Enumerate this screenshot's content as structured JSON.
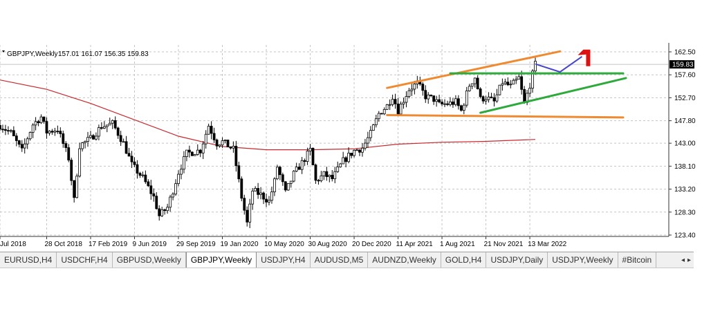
{
  "header": {
    "symbol": "GBPJPY,Weekly",
    "ohlc": "157.01 161.07 156.35 159.83"
  },
  "chart_data": {
    "type": "candlestick",
    "symbol": "GBPJPY",
    "timeframe": "Weekly",
    "ylim": [
      123.4,
      162.5
    ],
    "y_ticks": [
      "162.50",
      "157.60",
      "152.70",
      "147.80",
      "143.00",
      "138.10",
      "133.20",
      "128.30",
      "123.40"
    ],
    "current_price": "159.83",
    "x_ticks": [
      "Jul 2018",
      "28 Oct 2018",
      "17 Feb 2019",
      "9 Jun 2019",
      "29 Sep 2019",
      "19 Jan 2020",
      "10 May 2020",
      "30 Aug 2020",
      "20 Dec 2020",
      "11 Apr 2021",
      "1 Aug 2021",
      "21 Nov 2021",
      "13 Mar 2022"
    ],
    "x_range": [
      "2018-07-01",
      "2022-11-13"
    ],
    "grid": true,
    "close_path": [
      [
        "2018-07-01",
        146.8
      ],
      [
        "2018-07-29",
        145.2
      ],
      [
        "2018-08-26",
        141.3
      ],
      [
        "2018-09-23",
        147.0
      ],
      [
        "2018-10-14",
        148.6
      ],
      [
        "2018-10-28",
        145.4
      ],
      [
        "2018-11-25",
        146.0
      ],
      [
        "2018-12-23",
        139.8
      ],
      [
        "2019-01-06",
        130.8
      ],
      [
        "2019-01-20",
        142.5
      ],
      [
        "2019-02-17",
        144.0
      ],
      [
        "2019-03-17",
        146.6
      ],
      [
        "2019-04-14",
        147.2
      ],
      [
        "2019-05-12",
        143.0
      ],
      [
        "2019-06-02",
        138.4
      ],
      [
        "2019-06-30",
        135.6
      ],
      [
        "2019-07-28",
        131.5
      ],
      [
        "2019-08-11",
        127.5
      ],
      [
        "2019-09-01",
        129.3
      ],
      [
        "2019-09-15",
        132.9
      ],
      [
        "2019-09-29",
        136.8
      ],
      [
        "2019-10-20",
        140.8
      ],
      [
        "2019-11-24",
        141.5
      ],
      [
        "2019-12-15",
        146.8
      ],
      [
        "2020-01-05",
        143.0
      ],
      [
        "2020-01-19",
        143.3
      ],
      [
        "2020-02-16",
        141.7
      ],
      [
        "2020-03-08",
        131.5
      ],
      [
        "2020-03-22",
        125.9
      ],
      [
        "2020-04-05",
        132.9
      ],
      [
        "2020-04-26",
        132.0
      ],
      [
        "2020-05-17",
        130.6
      ],
      [
        "2020-05-31",
        134.8
      ],
      [
        "2020-06-07",
        138.0
      ],
      [
        "2020-06-28",
        132.4
      ],
      [
        "2020-07-19",
        136.4
      ],
      [
        "2020-08-09",
        138.8
      ],
      [
        "2020-08-30",
        141.5
      ],
      [
        "2020-09-13",
        134.9
      ],
      [
        "2020-10-04",
        136.3
      ],
      [
        "2020-10-25",
        135.4
      ],
      [
        "2020-11-22",
        139.2
      ],
      [
        "2020-12-20",
        141.4
      ],
      [
        "2021-01-10",
        142.0
      ],
      [
        "2021-01-31",
        145.0
      ],
      [
        "2021-02-21",
        149.3
      ],
      [
        "2021-03-14",
        151.0
      ],
      [
        "2021-03-28",
        153.1
      ],
      [
        "2021-04-11",
        150.0
      ],
      [
        "2021-05-09",
        154.5
      ],
      [
        "2021-05-30",
        155.8
      ],
      [
        "2021-06-20",
        153.0
      ],
      [
        "2021-07-11",
        152.4
      ],
      [
        "2021-07-25",
        151.2
      ],
      [
        "2021-08-22",
        151.5
      ],
      [
        "2021-09-05",
        151.8
      ],
      [
        "2021-09-19",
        149.9
      ],
      [
        "2021-10-10",
        155.4
      ],
      [
        "2021-10-24",
        157.1
      ],
      [
        "2021-11-07",
        152.4
      ],
      [
        "2021-11-21",
        152.8
      ],
      [
        "2021-12-12",
        151.8
      ],
      [
        "2022-01-02",
        156.0
      ],
      [
        "2022-01-23",
        155.1
      ],
      [
        "2022-02-13",
        156.9
      ],
      [
        "2022-02-27",
        151.4
      ],
      [
        "2022-03-13",
        155.5
      ],
      [
        "2022-03-27",
        159.8
      ]
    ],
    "moving_average": [
      [
        "2018-07-01",
        156.5
      ],
      [
        "2018-10-28",
        154.5
      ],
      [
        "2019-02-17",
        151.5
      ],
      [
        "2019-06-09",
        148.0
      ],
      [
        "2019-09-29",
        144.5
      ],
      [
        "2020-01-19",
        142.3
      ],
      [
        "2020-05-10",
        141.6
      ],
      [
        "2020-08-30",
        141.6
      ],
      [
        "2020-12-20",
        141.8
      ],
      [
        "2021-04-11",
        142.8
      ],
      [
        "2021-08-01",
        143.2
      ],
      [
        "2021-11-21",
        143.4
      ],
      [
        "2022-03-27",
        143.8
      ]
    ],
    "trendlines": [
      {
        "color": "#f08a30",
        "points": [
          [
            "2021-03-14",
            154.8
          ],
          [
            "2022-05-29",
            162.6
          ]
        ]
      },
      {
        "color": "#f08a30",
        "points": [
          [
            "2021-03-14",
            149.0
          ],
          [
            "2022-11-06",
            148.5
          ]
        ]
      },
      {
        "color": "#2eaa3c",
        "points": [
          [
            "2021-08-22",
            157.9
          ],
          [
            "2022-11-06",
            157.9
          ]
        ]
      },
      {
        "color": "#2eaa3c",
        "points": [
          [
            "2021-11-07",
            149.5
          ],
          [
            "2022-11-13",
            156.9
          ]
        ]
      }
    ],
    "projection": {
      "color": "#4444cc",
      "points": [
        [
          "2022-03-27",
          159.9
        ],
        [
          "2022-05-29",
          158.2
        ],
        [
          "2022-07-24",
          161.5
        ]
      ],
      "arrow_color": "#e01010",
      "arrow_point": [
        "2022-08-07",
        161.2
      ]
    },
    "colors": {
      "candles": "#000000",
      "ma": "#c8282d",
      "orange": "#f08a30",
      "green": "#2eaa3c",
      "blue": "#4444cc",
      "red": "#e01010"
    }
  },
  "tabs": {
    "items": [
      "EURUSD,H4",
      "USDCHF,H4",
      "GBPUSD,Weekly",
      "GBPJPY,Weekly",
      "USDJPY,H4",
      "AUDUSD,M5",
      "AUDNZD,Weekly",
      "GOLD,H4",
      "USDJPY,Daily",
      "USDJPY,Weekly",
      "#Bitcoin"
    ],
    "active": 3,
    "left_arrow": "◂",
    "right_arrow": "▸"
  }
}
